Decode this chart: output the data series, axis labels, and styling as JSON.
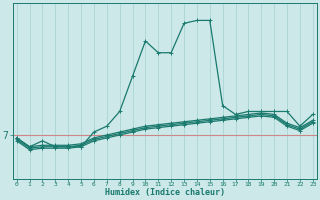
{
  "xlabel": "Humidex (Indice chaleur)",
  "bg_color": "#cce8e8",
  "line_color": "#1a7a6e",
  "grid_color_v": "#aad4d4",
  "hline_color": "#cc8888",
  "x_ticks": [
    0,
    1,
    2,
    3,
    4,
    5,
    6,
    7,
    8,
    9,
    10,
    11,
    12,
    13,
    14,
    15,
    16,
    17,
    18,
    19,
    20,
    21,
    22,
    23
  ],
  "y_hline": 7.0,
  "xlim": [
    -0.3,
    23.3
  ],
  "ylim": [
    5.5,
    11.5
  ],
  "lines": [
    {
      "x": [
        0,
        1,
        2,
        3,
        4,
        5,
        6,
        7,
        8,
        9,
        10,
        11,
        12,
        13,
        14,
        15,
        16,
        17,
        18,
        19,
        20,
        21,
        22,
        23
      ],
      "y": [
        6.9,
        6.6,
        6.8,
        6.6,
        6.6,
        6.6,
        7.1,
        7.3,
        7.8,
        9.0,
        10.2,
        9.8,
        9.8,
        10.8,
        10.9,
        10.9,
        8.0,
        7.7,
        7.8,
        7.8,
        7.8,
        7.8,
        7.3,
        7.7
      ]
    },
    {
      "x": [
        0,
        1,
        2,
        3,
        4,
        5,
        6,
        7,
        8,
        9,
        10,
        11,
        12,
        13,
        14,
        15,
        16,
        17,
        18,
        19,
        20,
        21,
        22,
        23
      ],
      "y": [
        6.85,
        6.55,
        6.6,
        6.6,
        6.6,
        6.65,
        6.85,
        6.95,
        7.05,
        7.15,
        7.25,
        7.3,
        7.35,
        7.4,
        7.45,
        7.5,
        7.55,
        7.6,
        7.65,
        7.7,
        7.65,
        7.35,
        7.2,
        7.45
      ]
    },
    {
      "x": [
        0,
        1,
        2,
        3,
        4,
        5,
        6,
        7,
        8,
        9,
        10,
        11,
        12,
        13,
        14,
        15,
        16,
        17,
        18,
        19,
        20,
        21,
        22,
        23
      ],
      "y": [
        6.9,
        6.6,
        6.65,
        6.65,
        6.65,
        6.7,
        6.9,
        7.0,
        7.1,
        7.2,
        7.3,
        7.35,
        7.4,
        7.45,
        7.5,
        7.55,
        7.6,
        7.65,
        7.7,
        7.75,
        7.7,
        7.4,
        7.25,
        7.5
      ]
    },
    {
      "x": [
        0,
        1,
        2,
        3,
        4,
        5,
        6,
        7,
        8,
        9,
        10,
        11,
        12,
        13,
        14,
        15,
        16,
        17,
        18,
        19,
        20,
        21,
        22,
        23
      ],
      "y": [
        6.8,
        6.5,
        6.55,
        6.55,
        6.55,
        6.6,
        6.8,
        6.9,
        7.0,
        7.1,
        7.2,
        7.25,
        7.3,
        7.35,
        7.4,
        7.45,
        7.5,
        7.55,
        7.6,
        7.65,
        7.6,
        7.3,
        7.15,
        7.4
      ]
    }
  ]
}
